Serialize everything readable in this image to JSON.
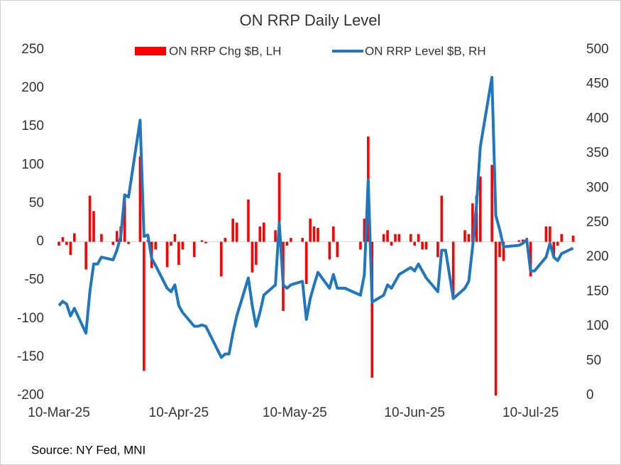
{
  "chart_data": {
    "type": "bar-line",
    "title": "ON RRP Daily Level",
    "source": "Source: NY Fed, MNI",
    "x": [
      "2025-03-10",
      "2025-03-11",
      "2025-03-12",
      "2025-03-13",
      "2025-03-14",
      "2025-03-17",
      "2025-03-18",
      "2025-03-19",
      "2025-03-20",
      "2025-03-21",
      "2025-03-24",
      "2025-03-25",
      "2025-03-26",
      "2025-03-27",
      "2025-03-28",
      "2025-03-31",
      "2025-04-01",
      "2025-04-02",
      "2025-04-03",
      "2025-04-04",
      "2025-04-07",
      "2025-04-08",
      "2025-04-09",
      "2025-04-10",
      "2025-04-11",
      "2025-04-14",
      "2025-04-15",
      "2025-04-16",
      "2025-04-17",
      "2025-04-21",
      "2025-04-22",
      "2025-04-23",
      "2025-04-24",
      "2025-04-25",
      "2025-04-28",
      "2025-04-29",
      "2025-04-30",
      "2025-05-01",
      "2025-05-02",
      "2025-05-05",
      "2025-05-06",
      "2025-05-07",
      "2025-05-08",
      "2025-05-09",
      "2025-05-12",
      "2025-05-13",
      "2025-05-14",
      "2025-05-15",
      "2025-05-16",
      "2025-05-19",
      "2025-05-20",
      "2025-05-21",
      "2025-05-22",
      "2025-05-23",
      "2025-05-27",
      "2025-05-28",
      "2025-05-29",
      "2025-05-30",
      "2025-06-02",
      "2025-06-03",
      "2025-06-04",
      "2025-06-05",
      "2025-06-06",
      "2025-06-09",
      "2025-06-10",
      "2025-06-11",
      "2025-06-12",
      "2025-06-13",
      "2025-06-16",
      "2025-06-17",
      "2025-06-18",
      "2025-06-20",
      "2025-06-23",
      "2025-06-24",
      "2025-06-25",
      "2025-06-26",
      "2025-06-27",
      "2025-06-30",
      "2025-07-01",
      "2025-07-02",
      "2025-07-03",
      "2025-07-07",
      "2025-07-08",
      "2025-07-09",
      "2025-07-10",
      "2025-07-11",
      "2025-07-14",
      "2025-07-15",
      "2025-07-16",
      "2025-07-17",
      "2025-07-18",
      "2025-07-21"
    ],
    "series": [
      {
        "name": "ON RRP Chg $B, LH",
        "color": "#ff0000",
        "type": "bar",
        "axis": "y",
        "values": [
          -5,
          6,
          -4,
          -17,
          11,
          -36,
          60,
          40,
          0,
          10,
          -4,
          14,
          20,
          60,
          -3,
          111,
          -168,
          2,
          -34,
          -10,
          -33,
          -5,
          10,
          -30,
          -10,
          -20,
          0,
          2,
          -2,
          -45,
          5,
          0,
          30,
          25,
          55,
          -40,
          -30,
          20,
          25,
          15,
          90,
          -90,
          -5,
          5,
          5,
          -55,
          30,
          20,
          18,
          -23,
          20,
          -20,
          0,
          0,
          -10,
          30,
          137,
          -177,
          10,
          15,
          -5,
          10,
          10,
          10,
          -5,
          10,
          -10,
          -10,
          -20,
          60,
          0,
          -70,
          15,
          10,
          50,
          60,
          85,
          100,
          -200,
          -20,
          -25,
          2,
          3,
          5,
          -45,
          0,
          20,
          20,
          -20,
          -5,
          10,
          8
        ]
      },
      {
        "name": "ON RRP Level $B, RH",
        "color": "#1f77c0",
        "type": "line",
        "axis": "y2",
        "values": [
          130,
          136,
          132,
          115,
          126,
          90,
          150,
          190,
          190,
          200,
          196,
          210,
          230,
          290,
          287,
          398,
          230,
          232,
          198,
          188,
          155,
          150,
          160,
          130,
          120,
          100,
          100,
          102,
          100,
          55,
          60,
          60,
          90,
          115,
          170,
          130,
          100,
          120,
          145,
          160,
          250,
          160,
          155,
          160,
          165,
          110,
          140,
          160,
          178,
          155,
          175,
          155,
          155,
          155,
          145,
          175,
          312,
          135,
          145,
          160,
          155,
          165,
          175,
          185,
          180,
          190,
          180,
          170,
          150,
          210,
          210,
          140,
          155,
          165,
          215,
          275,
          360,
          460,
          260,
          240,
          215,
          217,
          220,
          225,
          180,
          180,
          200,
          220,
          200,
          195,
          205,
          213
        ]
      }
    ],
    "xlim": [
      "2025-03-10",
      "2025-07-22"
    ],
    "xticks": [
      {
        "value": "2025-03-10",
        "label": "10-Mar-25"
      },
      {
        "value": "2025-04-10",
        "label": "10-Apr-25"
      },
      {
        "value": "2025-05-10",
        "label": "10-May-25"
      },
      {
        "value": "2025-06-10",
        "label": "10-Jun-25"
      },
      {
        "value": "2025-07-10",
        "label": "10-Jul-25"
      }
    ],
    "ylim": [
      -200,
      250
    ],
    "yticks": [
      -200,
      -150,
      -100,
      -50,
      0,
      50,
      100,
      150,
      200,
      250
    ],
    "y2lim": [
      0,
      500
    ],
    "y2ticks": [
      0,
      50,
      100,
      150,
      200,
      250,
      300,
      350,
      400,
      450,
      500
    ]
  }
}
